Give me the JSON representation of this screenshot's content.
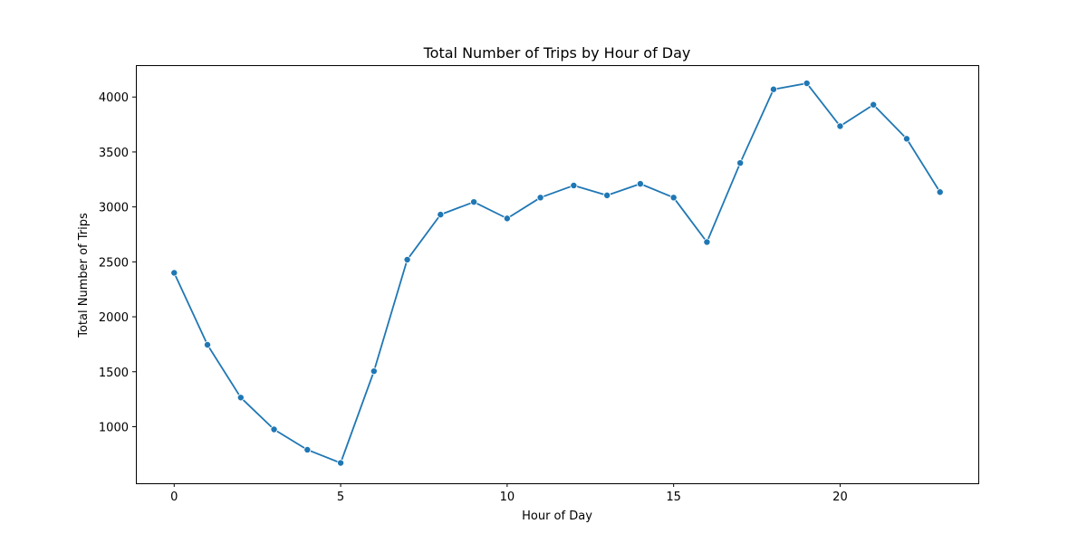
{
  "chart_data": {
    "type": "line",
    "title": "Total Number of Trips by Hour of Day",
    "xlabel": "Hour of Day",
    "ylabel": "Total Number of Trips",
    "xlim": [
      -1.15,
      24.15
    ],
    "ylim": [
      485,
      4290
    ],
    "xticks": [
      0,
      5,
      10,
      15,
      20
    ],
    "yticks": [
      1000,
      1500,
      2000,
      2500,
      3000,
      3500,
      4000
    ],
    "grid": false,
    "series_color": "#1f77b4",
    "x": [
      0,
      1,
      2,
      3,
      4,
      5,
      6,
      7,
      8,
      9,
      10,
      11,
      12,
      13,
      14,
      15,
      16,
      17,
      18,
      19,
      20,
      21,
      22,
      23
    ],
    "series": [
      {
        "values": [
          2400,
          1745,
          1265,
          975,
          790,
          670,
          1505,
          2520,
          2930,
          3045,
          2895,
          3085,
          3195,
          3105,
          3210,
          3085,
          2680,
          3400,
          4070,
          4125,
          3735,
          3930,
          3620,
          3135
        ]
      }
    ]
  }
}
